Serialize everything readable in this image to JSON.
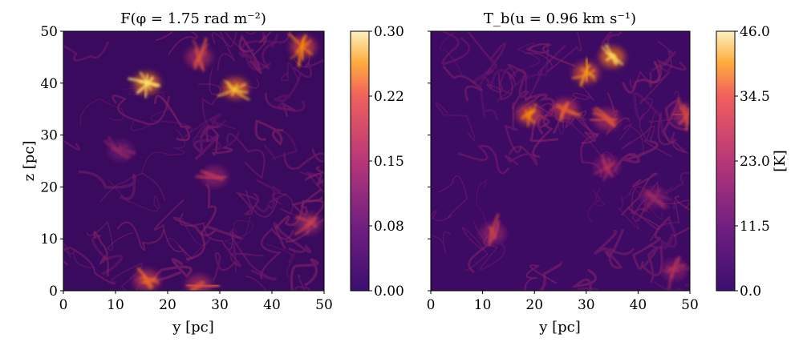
{
  "chart_data": [
    {
      "type": "heatmap",
      "title": "F(φ = 1.75 rad m⁻²)",
      "xlabel": "y [pc]",
      "ylabel": "z [pc]",
      "xlim": [
        0,
        50
      ],
      "ylim": [
        0,
        50
      ],
      "xticks": [
        "0",
        "10",
        "20",
        "30",
        "40",
        "50"
      ],
      "yticks": [
        "0",
        "10",
        "20",
        "30",
        "40",
        "50"
      ],
      "colormap": "inferno",
      "colorbar": {
        "label": "",
        "range": [
          0.0,
          0.3
        ],
        "ticks": [
          "0.00",
          "0.08",
          "0.15",
          "0.22",
          "0.30"
        ]
      },
      "bright_regions": [
        {
          "y": 16,
          "z": 40,
          "level": 0.28
        },
        {
          "y": 33,
          "z": 39,
          "level": 0.26
        },
        {
          "y": 46,
          "z": 47,
          "level": 0.22
        },
        {
          "y": 26,
          "z": 45,
          "level": 0.18
        },
        {
          "y": 29,
          "z": 22,
          "level": 0.15
        },
        {
          "y": 47,
          "z": 13,
          "level": 0.16
        },
        {
          "y": 16,
          "z": 2,
          "level": 0.2
        },
        {
          "y": 26,
          "z": 1,
          "level": 0.18
        },
        {
          "y": 11,
          "z": 27,
          "level": 0.12
        }
      ]
    },
    {
      "type": "heatmap",
      "title": "T_b(u = 0.96 km s⁻¹)",
      "xlabel": "y [pc]",
      "ylabel": "",
      "xlim": [
        0,
        50
      ],
      "ylim": [
        0,
        50
      ],
      "xticks": [
        "0",
        "10",
        "20",
        "30",
        "40",
        "50"
      ],
      "yticks": [],
      "colormap": "inferno",
      "colorbar": {
        "label": "[K]",
        "range": [
          0.0,
          46.0
        ],
        "ticks": [
          "0.0",
          "11.5",
          "23.0",
          "34.5",
          "46.0"
        ]
      },
      "bright_regions": [
        {
          "y": 35,
          "z": 45,
          "level": 42
        },
        {
          "y": 30,
          "z": 42,
          "level": 36
        },
        {
          "y": 19,
          "z": 34,
          "level": 34
        },
        {
          "y": 26,
          "z": 35,
          "level": 30
        },
        {
          "y": 34,
          "z": 33,
          "level": 28
        },
        {
          "y": 49,
          "z": 34,
          "level": 26
        },
        {
          "y": 34,
          "z": 24,
          "level": 22
        },
        {
          "y": 12,
          "z": 11,
          "level": 24
        },
        {
          "y": 43,
          "z": 18,
          "level": 20
        },
        {
          "y": 47,
          "z": 4,
          "level": 22
        }
      ]
    }
  ]
}
